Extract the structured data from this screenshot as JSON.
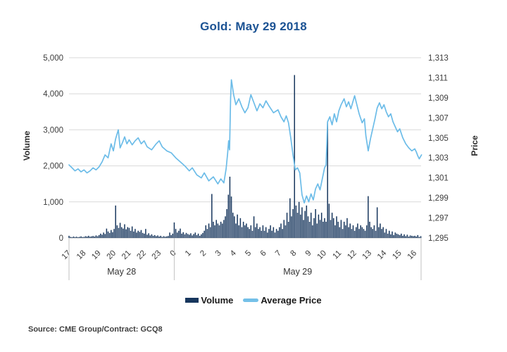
{
  "title": "Gold: May 29 2018",
  "source": "Source: CME Group/Contract: GCQ8",
  "legend": {
    "volume_label": "Volume",
    "price_label": "Average Price"
  },
  "y_left": {
    "title": "Volume",
    "tick_labels": [
      "5,000",
      "4,000",
      "3,000",
      "2,000",
      "1,000",
      "0"
    ],
    "tick_values": [
      5000,
      4000,
      3000,
      2000,
      1000,
      0
    ]
  },
  "y_right": {
    "title": "Price",
    "tick_labels": [
      "1,313",
      "1,311",
      "1,309",
      "1,307",
      "1,305",
      "1,303",
      "1,301",
      "1,299",
      "1,297",
      "1,295"
    ],
    "tick_values": [
      1313,
      1311,
      1309,
      1307,
      1305,
      1303,
      1301,
      1299,
      1297,
      1295
    ]
  },
  "x_axis": {
    "hour_labels": [
      "17",
      "18",
      "19",
      "20",
      "21",
      "22",
      "23",
      "0",
      "1",
      "2",
      "3",
      "4",
      "5",
      "6",
      "7",
      "8",
      "9",
      "10",
      "11",
      "12",
      "13",
      "14",
      "15",
      "16"
    ],
    "day_groups": [
      {
        "label": "May 28",
        "start": 0,
        "end": 7
      },
      {
        "label": "May 29",
        "start": 7,
        "end": 23.42
      }
    ]
  },
  "colors": {
    "title": "#1c5394",
    "bar": "#17365d",
    "line": "#6cbce8",
    "grid": "#d9d9d9",
    "axis": "#c2c2c2",
    "tick_text": "#3b3b3b"
  },
  "chart_data": {
    "type": "bar+line",
    "title": "Gold: May 29 2018",
    "x_unit": "hours since May 28 17:00",
    "xlim": [
      0,
      23.42
    ],
    "left_axis": {
      "label": "Volume",
      "ylim": [
        0,
        5000
      ]
    },
    "right_axis": {
      "label": "Price",
      "ylim": [
        1295,
        1313
      ]
    },
    "legend_position": "bottom-center",
    "grid": "horizontal-only",
    "series": [
      {
        "name": "Volume",
        "type": "bar",
        "axis": "left",
        "x0": 0,
        "dx": 0.1,
        "values": [
          60,
          30,
          20,
          40,
          25,
          35,
          20,
          30,
          45,
          25,
          30,
          50,
          40,
          60,
          35,
          45,
          55,
          40,
          70,
          50,
          80,
          120,
          90,
          150,
          110,
          260,
          180,
          140,
          220,
          160,
          250,
          900,
          350,
          280,
          420,
          300,
          260,
          380,
          240,
          300,
          280,
          200,
          320,
          180,
          250,
          150,
          200,
          170,
          220,
          140,
          120,
          250,
          90,
          130,
          70,
          100,
          60,
          80,
          50,
          70,
          40,
          60,
          30,
          50,
          35,
          45,
          55,
          150,
          80,
          120,
          430,
          250,
          150,
          200,
          260,
          120,
          160,
          100,
          140,
          110,
          90,
          130,
          70,
          110,
          150,
          80,
          120,
          60,
          100,
          140,
          200,
          350,
          250,
          400,
          300,
          1220,
          450,
          350,
          500,
          400,
          350,
          450,
          400,
          500,
          600,
          800,
          1200,
          1700,
          1150,
          700,
          600,
          400,
          650,
          350,
          550,
          300,
          450,
          350,
          400,
          300,
          250,
          350,
          200,
          600,
          300,
          400,
          250,
          300,
          200,
          350,
          200,
          300,
          150,
          250,
          350,
          200,
          300,
          150,
          250,
          200,
          300,
          400,
          250,
          500,
          350,
          700,
          450,
          1100,
          600,
          800,
          4520,
          900,
          700,
          1000,
          650,
          850,
          500,
          750,
          900,
          600,
          450,
          700,
          350,
          550,
          800,
          400,
          650,
          500,
          700,
          450,
          550,
          450,
          3220,
          950,
          500,
          700,
          550,
          350,
          600,
          450,
          300,
          500,
          250,
          450,
          350,
          550,
          300,
          400,
          250,
          350,
          200,
          300,
          400,
          250,
          350,
          300,
          250,
          200,
          350,
          1160,
          450,
          300,
          250,
          350,
          200,
          850,
          300,
          400,
          250,
          300,
          150,
          250,
          120,
          200,
          100,
          180,
          80,
          150,
          120,
          100,
          80,
          120,
          60,
          100,
          50,
          90,
          40,
          70,
          60,
          50,
          60,
          40,
          80,
          30,
          50
        ]
      },
      {
        "name": "Average Price",
        "type": "line",
        "axis": "right",
        "points": [
          [
            0,
            1302.3
          ],
          [
            0.2,
            1302
          ],
          [
            0.4,
            1301.7
          ],
          [
            0.6,
            1301.9
          ],
          [
            0.8,
            1301.6
          ],
          [
            1,
            1301.8
          ],
          [
            1.2,
            1301.5
          ],
          [
            1.4,
            1301.7
          ],
          [
            1.6,
            1302
          ],
          [
            1.8,
            1301.8
          ],
          [
            2,
            1302.1
          ],
          [
            2.2,
            1302.6
          ],
          [
            2.4,
            1303.3
          ],
          [
            2.6,
            1303
          ],
          [
            2.8,
            1304.4
          ],
          [
            2.95,
            1303.7
          ],
          [
            3.1,
            1304.9
          ],
          [
            3.28,
            1305.8
          ],
          [
            3.4,
            1304
          ],
          [
            3.55,
            1304.5
          ],
          [
            3.7,
            1305.1
          ],
          [
            3.85,
            1304.4
          ],
          [
            4,
            1304.8
          ],
          [
            4.2,
            1304.3
          ],
          [
            4.4,
            1304.7
          ],
          [
            4.6,
            1305
          ],
          [
            4.8,
            1304.4
          ],
          [
            5,
            1304.7
          ],
          [
            5.2,
            1304.1
          ],
          [
            5.5,
            1303.8
          ],
          [
            5.8,
            1304.4
          ],
          [
            6,
            1304.7
          ],
          [
            6.2,
            1304.1
          ],
          [
            6.5,
            1303.7
          ],
          [
            6.8,
            1303.5
          ],
          [
            7.1,
            1303
          ],
          [
            7.4,
            1302.6
          ],
          [
            7.7,
            1302.2
          ],
          [
            8,
            1301.7
          ],
          [
            8.2,
            1302
          ],
          [
            8.5,
            1301.3
          ],
          [
            8.8,
            1301
          ],
          [
            9,
            1301.5
          ],
          [
            9.3,
            1300.7
          ],
          [
            9.6,
            1301.1
          ],
          [
            9.9,
            1300.4
          ],
          [
            10.1,
            1300.9
          ],
          [
            10.3,
            1300.5
          ],
          [
            10.45,
            1301.9
          ],
          [
            10.55,
            1303.4
          ],
          [
            10.62,
            1304.7
          ],
          [
            10.68,
            1303.8
          ],
          [
            10.75,
            1309
          ],
          [
            10.8,
            1310.8
          ],
          [
            10.95,
            1309.3
          ],
          [
            11.1,
            1308.3
          ],
          [
            11.3,
            1308.9
          ],
          [
            11.5,
            1308.1
          ],
          [
            11.7,
            1307.5
          ],
          [
            11.9,
            1308
          ],
          [
            12.1,
            1309.3
          ],
          [
            12.3,
            1308.5
          ],
          [
            12.5,
            1307.7
          ],
          [
            12.7,
            1308.4
          ],
          [
            12.9,
            1308
          ],
          [
            13.1,
            1308.7
          ],
          [
            13.3,
            1308.2
          ],
          [
            13.6,
            1307.5
          ],
          [
            13.9,
            1307.8
          ],
          [
            14.1,
            1307.1
          ],
          [
            14.3,
            1306.6
          ],
          [
            14.45,
            1307.2
          ],
          [
            14.6,
            1306.5
          ],
          [
            14.75,
            1305
          ],
          [
            14.9,
            1303.3
          ],
          [
            15.05,
            1301.8
          ],
          [
            15.2,
            1302
          ],
          [
            15.35,
            1301.5
          ],
          [
            15.5,
            1299.3
          ],
          [
            15.65,
            1298.5
          ],
          [
            15.8,
            1299.2
          ],
          [
            15.95,
            1298.6
          ],
          [
            16.1,
            1299.4
          ],
          [
            16.25,
            1298.8
          ],
          [
            16.4,
            1299.9
          ],
          [
            16.55,
            1300.4
          ],
          [
            16.7,
            1299.8
          ],
          [
            16.85,
            1300.9
          ],
          [
            17,
            1302
          ],
          [
            17.1,
            1302.3
          ],
          [
            17.2,
            1306.6
          ],
          [
            17.35,
            1307.1
          ],
          [
            17.5,
            1306.3
          ],
          [
            17.65,
            1307.4
          ],
          [
            17.8,
            1306.6
          ],
          [
            17.95,
            1307.7
          ],
          [
            18.1,
            1308.3
          ],
          [
            18.3,
            1308.9
          ],
          [
            18.45,
            1308.1
          ],
          [
            18.6,
            1308.6
          ],
          [
            18.75,
            1307.9
          ],
          [
            19,
            1309.2
          ],
          [
            19.15,
            1308.3
          ],
          [
            19.3,
            1307.4
          ],
          [
            19.5,
            1306.5
          ],
          [
            19.65,
            1306.9
          ],
          [
            19.75,
            1305.2
          ],
          [
            19.9,
            1303.7
          ],
          [
            20.05,
            1304.9
          ],
          [
            20.2,
            1305.9
          ],
          [
            20.35,
            1306.9
          ],
          [
            20.5,
            1308
          ],
          [
            20.65,
            1308.5
          ],
          [
            20.8,
            1307.9
          ],
          [
            20.95,
            1308.3
          ],
          [
            21.1,
            1307.6
          ],
          [
            21.25,
            1307.1
          ],
          [
            21.4,
            1307.4
          ],
          [
            21.55,
            1306.6
          ],
          [
            21.7,
            1306.1
          ],
          [
            21.85,
            1305.6
          ],
          [
            22,
            1305.9
          ],
          [
            22.2,
            1305
          ],
          [
            22.4,
            1304.4
          ],
          [
            22.6,
            1304
          ],
          [
            22.8,
            1303.7
          ],
          [
            23,
            1303.9
          ],
          [
            23.1,
            1303.6
          ],
          [
            23.2,
            1303.2
          ],
          [
            23.3,
            1302.9
          ],
          [
            23.45,
            1303.3
          ]
        ]
      }
    ]
  }
}
